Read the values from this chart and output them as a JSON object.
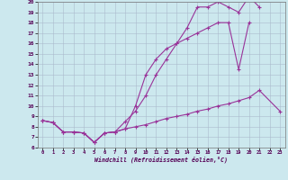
{
  "bg_color": "#cce8ee",
  "grid_color": "#aabbcc",
  "line_color": "#993399",
  "xlabel": "Windchill (Refroidissement éolien,°C)",
  "xlim": [
    -0.5,
    23.5
  ],
  "ylim": [
    6,
    20
  ],
  "xticks": [
    0,
    1,
    2,
    3,
    4,
    5,
    6,
    7,
    8,
    9,
    10,
    11,
    12,
    13,
    14,
    15,
    16,
    17,
    18,
    19,
    20,
    21,
    22,
    23
  ],
  "yticks": [
    6,
    7,
    8,
    9,
    10,
    11,
    12,
    13,
    14,
    15,
    16,
    17,
    18,
    19,
    20
  ],
  "line_top_x": [
    0,
    1,
    2,
    3,
    4,
    5,
    6,
    7,
    8,
    9,
    10,
    11,
    12,
    13,
    14,
    15,
    16,
    17,
    18,
    19,
    20,
    21
  ],
  "line_top_y": [
    8.6,
    8.4,
    7.5,
    7.5,
    7.4,
    6.5,
    7.4,
    7.5,
    8.5,
    9.5,
    11.0,
    13.0,
    14.5,
    16.0,
    17.5,
    19.5,
    19.5,
    20.0,
    19.5,
    19.0,
    20.5,
    19.5
  ],
  "line_mid_x": [
    0,
    1,
    2,
    3,
    4,
    5,
    6,
    7,
    8,
    9,
    10,
    11,
    12,
    13,
    14,
    15,
    16,
    17,
    18,
    19,
    20
  ],
  "line_mid_y": [
    8.6,
    8.4,
    7.5,
    7.5,
    7.4,
    6.5,
    7.4,
    7.5,
    7.8,
    10.0,
    13.0,
    14.5,
    15.5,
    16.0,
    16.5,
    17.0,
    17.5,
    18.0,
    18.0,
    13.5,
    18.0
  ],
  "line_bot_x": [
    0,
    1,
    2,
    3,
    4,
    5,
    6,
    7,
    8,
    9,
    10,
    11,
    12,
    13,
    14,
    15,
    16,
    17,
    18,
    19,
    20,
    21,
    23
  ],
  "line_bot_y": [
    8.6,
    8.4,
    7.5,
    7.5,
    7.4,
    6.5,
    7.4,
    7.5,
    7.8,
    8.0,
    8.2,
    8.5,
    8.8,
    9.0,
    9.2,
    9.5,
    9.7,
    10.0,
    10.2,
    10.5,
    10.8,
    11.5,
    9.5
  ]
}
